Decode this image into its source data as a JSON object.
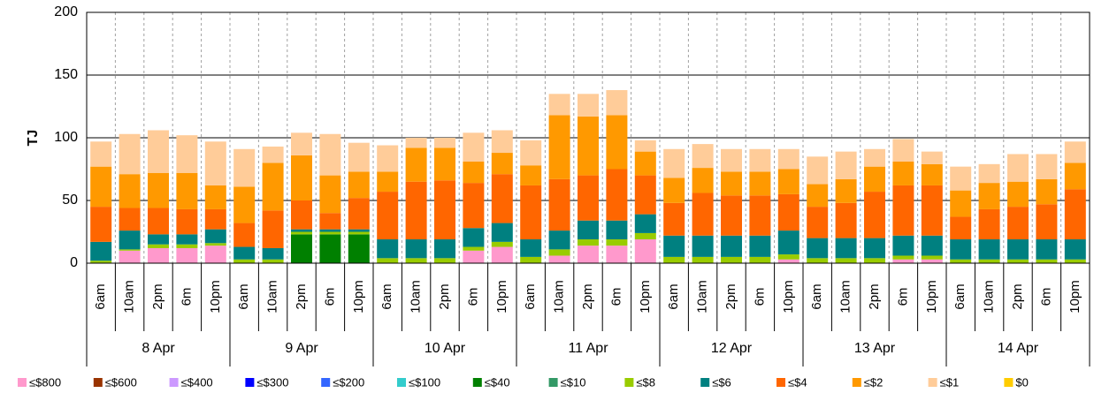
{
  "chart_data": {
    "type": "stacked_bar",
    "y_label": "TJ",
    "categories": [
      "6am",
      "10am",
      "2pm",
      "6m",
      "10pm",
      "6am",
      "10am",
      "2pm",
      "6m",
      "10pm",
      "6am",
      "10am",
      "2pm",
      "6m",
      "10pm",
      "6am",
      "10am",
      "2pm",
      "6m",
      "10pm",
      "6am",
      "10am",
      "2pm",
      "6m",
      "10pm",
      "6am",
      "10am",
      "2pm",
      "6m",
      "10pm",
      "6am",
      "10am",
      "2pm",
      "6m",
      "10pm"
    ],
    "category_groups": [
      "8 Apr",
      "9 Apr",
      "10 Apr",
      "11 Apr",
      "12 Apr",
      "13 Apr",
      "14 Apr"
    ],
    "ylim": [
      0,
      200
    ],
    "yticks": [
      0,
      50,
      100,
      150,
      200
    ],
    "grid": true,
    "series": [
      {
        "name": "≤$800",
        "color": "#ff99cc",
        "values": [
          0,
          10,
          12,
          12,
          14,
          0,
          0,
          0,
          0,
          0,
          0,
          0,
          0,
          10,
          13,
          0,
          6,
          14,
          14,
          19,
          0,
          0,
          0,
          0,
          3,
          0,
          0,
          0,
          3,
          3,
          0,
          0,
          0,
          0,
          0
        ]
      },
      {
        "name": "≤$600",
        "color": "#993300",
        "values": [
          0,
          0,
          0,
          0,
          0,
          0,
          0,
          0,
          0,
          0,
          0,
          0,
          0,
          0,
          0,
          0,
          0,
          0,
          0,
          0,
          0,
          0,
          0,
          0,
          0,
          0,
          0,
          0,
          0,
          0,
          0,
          0,
          0,
          0,
          0
        ]
      },
      {
        "name": "≤$400",
        "color": "#cc99ff",
        "values": [
          0,
          0,
          0,
          0,
          0,
          0,
          0,
          0,
          0,
          0,
          0,
          0,
          0,
          0,
          0,
          0,
          0,
          0,
          0,
          0,
          0,
          0,
          0,
          0,
          0,
          0,
          0,
          0,
          0,
          0,
          0,
          0,
          0,
          0,
          0
        ]
      },
      {
        "name": "≤$300",
        "color": "#0000ff",
        "values": [
          0,
          0,
          0,
          0,
          0,
          0,
          0,
          0,
          0,
          0,
          0,
          0,
          0,
          0,
          0,
          0,
          0,
          0,
          0,
          0,
          0,
          0,
          0,
          0,
          0,
          0,
          0,
          0,
          0,
          0,
          0,
          0,
          0,
          0,
          0
        ]
      },
      {
        "name": "≤$200",
        "color": "#3366ff",
        "values": [
          0,
          0,
          0,
          0,
          0,
          0,
          0,
          0,
          0,
          0,
          0,
          0,
          0,
          0,
          0,
          0,
          0,
          0,
          0,
          0,
          0,
          0,
          0,
          0,
          0,
          0,
          0,
          0,
          0,
          0,
          0,
          0,
          0,
          0,
          0
        ]
      },
      {
        "name": "≤$100",
        "color": "#33cccc",
        "values": [
          0,
          0,
          0,
          0,
          0,
          0,
          0,
          0,
          0,
          0,
          0,
          0,
          0,
          0,
          0,
          0,
          0,
          0,
          0,
          0,
          0,
          0,
          0,
          0,
          0,
          0,
          0,
          0,
          0,
          0,
          0,
          0,
          0,
          0,
          0
        ]
      },
      {
        "name": "≤$40",
        "color": "#008000",
        "values": [
          0,
          0,
          0,
          0,
          0,
          0,
          0,
          23,
          23,
          23,
          0,
          0,
          0,
          0,
          0,
          0,
          0,
          0,
          0,
          0,
          0,
          0,
          0,
          0,
          0,
          0,
          0,
          0,
          0,
          0,
          0,
          0,
          0,
          0,
          0
        ]
      },
      {
        "name": "≤$10",
        "color": "#339966",
        "values": [
          0,
          0,
          0,
          0,
          0,
          0,
          0,
          0,
          0,
          0,
          0,
          0,
          0,
          0,
          0,
          0,
          0,
          0,
          0,
          0,
          0,
          0,
          0,
          0,
          0,
          0,
          0,
          0,
          0,
          0,
          0,
          0,
          0,
          0,
          0
        ]
      },
      {
        "name": "≤$8",
        "color": "#99cc00",
        "values": [
          2,
          1,
          3,
          3,
          2,
          3,
          3,
          2,
          2,
          2,
          4,
          4,
          4,
          3,
          4,
          5,
          5,
          5,
          5,
          5,
          5,
          5,
          5,
          5,
          4,
          4,
          4,
          4,
          3,
          3,
          3,
          3,
          3,
          3,
          3
        ]
      },
      {
        "name": "≤$6",
        "color": "#008080",
        "values": [
          15,
          15,
          8,
          8,
          11,
          10,
          9,
          2,
          2,
          2,
          15,
          15,
          15,
          15,
          15,
          14,
          15,
          15,
          15,
          15,
          17,
          17,
          17,
          17,
          19,
          16,
          16,
          16,
          16,
          16,
          16,
          16,
          16,
          16,
          16
        ]
      },
      {
        "name": "≤$4",
        "color": "#ff6600",
        "values": [
          28,
          18,
          21,
          20,
          16,
          19,
          30,
          23,
          13,
          25,
          38,
          46,
          47,
          36,
          39,
          43,
          41,
          36,
          41,
          31,
          26,
          34,
          32,
          32,
          29,
          25,
          28,
          37,
          40,
          40,
          18,
          24,
          26,
          28,
          40
        ]
      },
      {
        "name": "≤$2",
        "color": "#ff9900",
        "values": [
          32,
          27,
          28,
          29,
          19,
          29,
          38,
          36,
          30,
          21,
          16,
          27,
          26,
          17,
          17,
          16,
          51,
          47,
          43,
          19,
          20,
          20,
          19,
          19,
          20,
          18,
          19,
          20,
          19,
          17,
          21,
          21,
          20,
          20,
          21
        ]
      },
      {
        "name": "≤$1",
        "color": "#ffcc99",
        "values": [
          20,
          32,
          34,
          30,
          35,
          30,
          13,
          18,
          33,
          23,
          21,
          8,
          8,
          23,
          18,
          20,
          17,
          18,
          20,
          9,
          23,
          19,
          18,
          18,
          16,
          22,
          22,
          14,
          18,
          10,
          19,
          15,
          22,
          20,
          17
        ]
      },
      {
        "name": "$0",
        "color": "#ffcc00",
        "values": [
          0,
          0,
          0,
          0,
          0,
          0,
          0,
          0,
          0,
          0,
          0,
          0,
          0,
          0,
          0,
          0,
          0,
          0,
          0,
          0,
          0,
          0,
          0,
          0,
          0,
          0,
          0,
          0,
          0,
          0,
          0,
          0,
          0,
          0,
          0
        ]
      }
    ]
  }
}
